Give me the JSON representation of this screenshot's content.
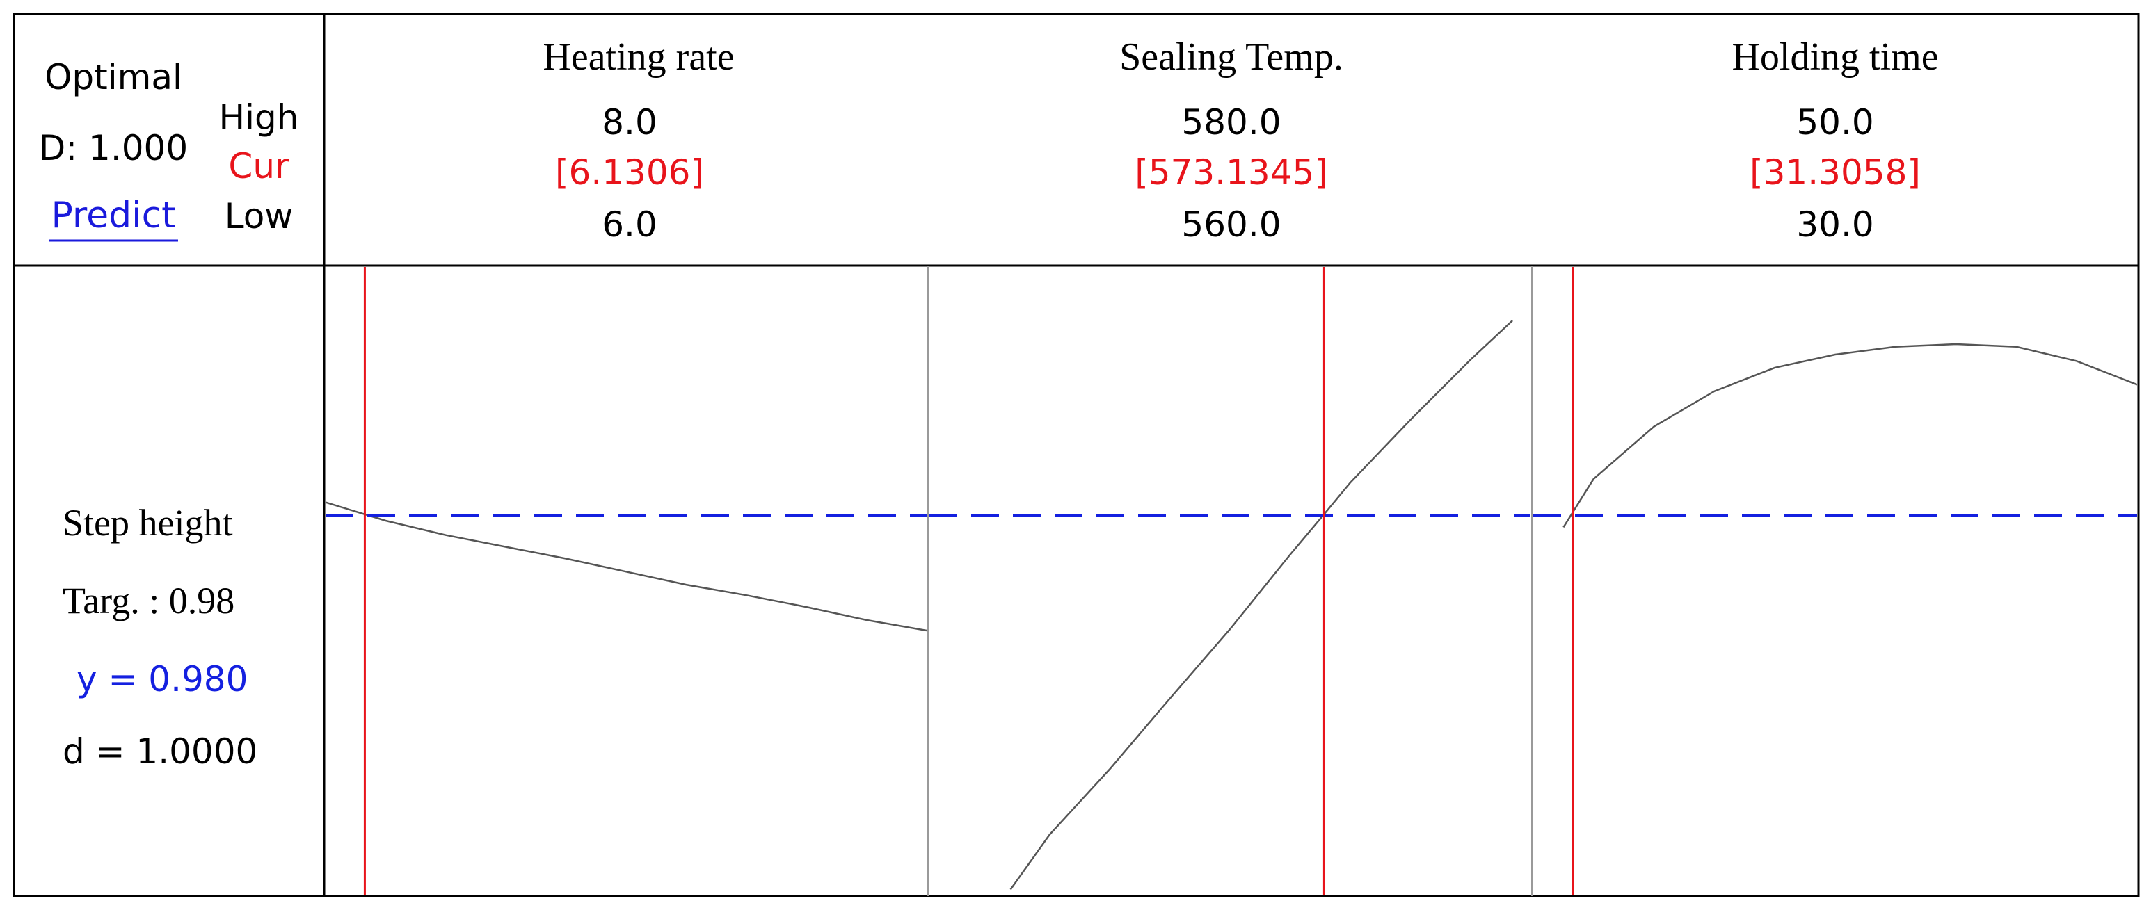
{
  "header_left": {
    "optimal_label": "Optimal",
    "d_label": "D: 1.000",
    "predict_link": "Predict",
    "high_label": "High",
    "cur_label": "Cur",
    "low_label": "Low"
  },
  "factors": [
    {
      "name": "Heating rate",
      "high": "8.0",
      "cur": "[6.1306]",
      "low": "6.0"
    },
    {
      "name": "Sealing Temp.",
      "high": "580.0",
      "cur": "[573.1345]",
      "low": "560.0"
    },
    {
      "name": "Holding time",
      "high": "50.0",
      "cur": "[31.3058]",
      "low": "30.0"
    }
  ],
  "response": {
    "name": "Step height",
    "target_label": "Targ. : 0.98",
    "y_label": "y = 0.980",
    "d_label": "d = 1.0000"
  },
  "colors": {
    "current_line": "#e8141b",
    "target_line": "#1420e0",
    "curve": "#555555",
    "link": "#1a1adc",
    "border": "#000000",
    "panel_divider": "#9a9a9a"
  },
  "chart_data": {
    "type": "line",
    "response_target": 0.98,
    "panels": [
      {
        "factor": "Heating rate",
        "xlim": [
          6.0,
          8.0
        ],
        "current": 6.1306,
        "curve": [
          [
            6.0,
            0.99
          ],
          [
            6.2,
            0.976
          ],
          [
            6.4,
            0.965
          ],
          [
            6.6,
            0.956
          ],
          [
            6.8,
            0.947
          ],
          [
            7.0,
            0.937
          ],
          [
            7.2,
            0.927
          ],
          [
            7.4,
            0.919
          ],
          [
            7.6,
            0.91
          ],
          [
            7.8,
            0.9
          ],
          [
            8.0,
            0.892
          ]
        ]
      },
      {
        "factor": "Sealing Temp.",
        "xlim": [
          560.0,
          580.0
        ],
        "current": 573.1345,
        "curve": [
          [
            562.7,
            0.694
          ],
          [
            564,
            0.736
          ],
          [
            566,
            0.786
          ],
          [
            568,
            0.84
          ],
          [
            570,
            0.893
          ],
          [
            572,
            0.95
          ],
          [
            573.1,
            0.98
          ],
          [
            574,
            1.005
          ],
          [
            576,
            1.053
          ],
          [
            578,
            1.099
          ],
          [
            579.4,
            1.129
          ]
        ]
      },
      {
        "factor": "Holding time",
        "xlim": [
          30.0,
          50.0
        ],
        "current": 31.3058,
        "curve": [
          [
            31.0,
            0.971
          ],
          [
            32,
            1.008
          ],
          [
            34,
            1.048
          ],
          [
            36,
            1.075
          ],
          [
            38,
            1.093
          ],
          [
            40,
            1.103
          ],
          [
            42,
            1.109
          ],
          [
            44,
            1.111
          ],
          [
            46,
            1.109
          ],
          [
            48,
            1.098
          ],
          [
            50,
            1.08
          ]
        ]
      }
    ]
  }
}
